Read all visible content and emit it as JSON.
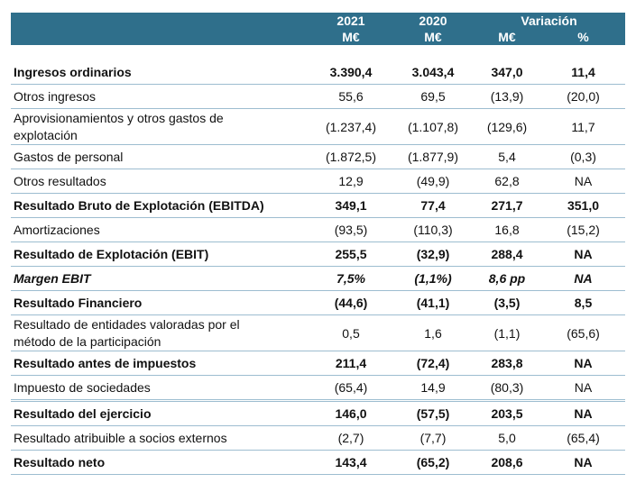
{
  "header": {
    "columns": [
      {
        "year": "2021",
        "unit": "M€"
      },
      {
        "year": "2020",
        "unit": "M€"
      }
    ],
    "variation": {
      "title": "Variación",
      "units": [
        "M€",
        "%"
      ]
    }
  },
  "table": {
    "rows": [
      {
        "label": "Ingresos ordinarios",
        "values": [
          "3.390,4",
          "3.043,4",
          "347,0",
          "11,4"
        ],
        "bold": true
      },
      {
        "label": "Otros ingresos",
        "values": [
          "55,6",
          "69,5",
          "(13,9)",
          "(20,0)"
        ]
      },
      {
        "label": "Aprovisionamientos y otros gastos de explotación",
        "values": [
          "(1.237,4)",
          "(1.107,8)",
          "(129,6)",
          "11,7"
        ]
      },
      {
        "label": "Gastos de personal",
        "values": [
          "(1.872,5)",
          "(1.877,9)",
          "5,4",
          "(0,3)"
        ]
      },
      {
        "label": "Otros resultados",
        "values": [
          "12,9",
          "(49,9)",
          "62,8",
          "NA"
        ]
      },
      {
        "label": "Resultado Bruto de Explotación (EBITDA)",
        "values": [
          "349,1",
          "77,4",
          "271,7",
          "351,0"
        ],
        "bold": true
      },
      {
        "label": "Amortizaciones",
        "values": [
          "(93,5)",
          "(110,3)",
          "16,8",
          "(15,2)"
        ]
      },
      {
        "label": "Resultado de Explotación (EBIT)",
        "values": [
          "255,5",
          "(32,9)",
          "288,4",
          "NA"
        ],
        "bold": true
      },
      {
        "label": "Margen EBIT",
        "values": [
          "7,5%",
          "(1,1%)",
          "8,6 pp",
          "NA"
        ],
        "bold": true,
        "italic": true
      },
      {
        "label": "Resultado Financiero",
        "values": [
          "(44,6)",
          "(41,1)",
          "(3,5)",
          "8,5"
        ],
        "bold": true
      },
      {
        "label": "Resultado de entidades valoradas por el método de la participación",
        "values": [
          "0,5",
          "1,6",
          "(1,1)",
          "(65,6)"
        ]
      },
      {
        "label": "Resultado antes de impuestos",
        "values": [
          "211,4",
          "(72,4)",
          "283,8",
          "NA"
        ],
        "bold": true
      },
      {
        "label": "Impuesto de sociedades",
        "values": [
          "(65,4)",
          "14,9",
          "(80,3)",
          "NA"
        ],
        "double_rule_below": true
      },
      {
        "label": "Resultado del ejercicio",
        "values": [
          "146,0",
          "(57,5)",
          "203,5",
          "NA"
        ],
        "bold": true
      },
      {
        "label": "Resultado atribuible a socios externos",
        "values": [
          "(2,7)",
          "(7,7)",
          "5,0",
          "(65,4)"
        ]
      },
      {
        "label": "Resultado neto",
        "values": [
          "143,4",
          "(65,2)",
          "208,6",
          "NA"
        ],
        "bold": true
      }
    ]
  }
}
